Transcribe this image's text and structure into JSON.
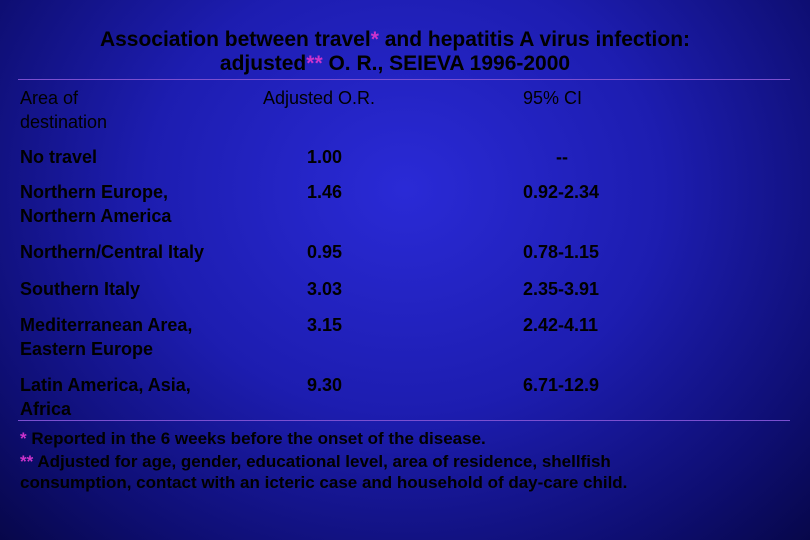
{
  "title": {
    "line1_prefix": "Association between travel",
    "line1_star": "*",
    "line1_suffix": " and hepatitis A virus infection:",
    "line2_prefix": "adjusted",
    "line2_star": "**",
    "line2_suffix": " O. R., SEIEVA 1996-2000"
  },
  "table": {
    "headers": {
      "area_line1": "Area of",
      "area_line2": "destination",
      "or": "Adjusted O.R.",
      "ci": "95% CI"
    },
    "rows": [
      {
        "area1": "No travel",
        "area2": "",
        "or": "1.00",
        "ci": "--"
      },
      {
        "area1": "Northern Europe,",
        "area2": "Northern America",
        "or": "1.46",
        "ci": "0.92-2.34"
      },
      {
        "area1": "Northern/Central Italy",
        "area2": "",
        "or": "0.95",
        "ci": "0.78-1.15"
      },
      {
        "area1": "Southern Italy",
        "area2": "",
        "or": "3.03",
        "ci": "2.35-3.91"
      },
      {
        "area1": "Mediterranean Area,",
        "area2": "Eastern Europe",
        "or": "3.15",
        "ci": "2.42-4.11"
      },
      {
        "area1": "Latin America, Asia,",
        "area2": "Africa",
        "or": "9.30",
        "ci": "6.71-12.9"
      }
    ]
  },
  "footnotes": {
    "note1_mark": "*",
    "note1_text": " Reported in the 6 weeks before the onset of the disease.",
    "note2_mark": "**",
    "note2_text_line1": " Adjusted for age, gender, educational level, area of residence, shellfish",
    "note2_text_line2": "consumption, contact with an icteric case and household of day-care child."
  },
  "colors": {
    "background": "#1d1db0",
    "asterisk": "#cc33cc",
    "rule": "#7a4fd0",
    "text": "#000000"
  }
}
